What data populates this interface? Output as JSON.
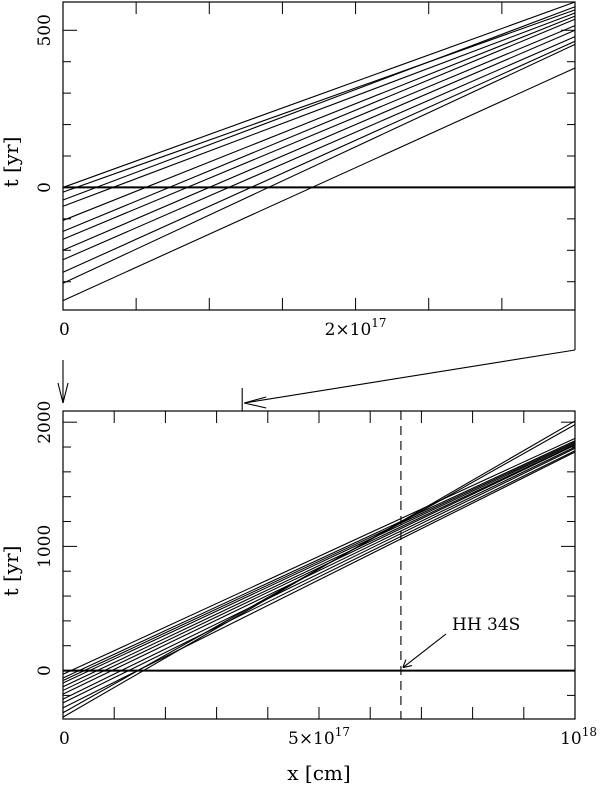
{
  "chart_data": [
    {
      "type": "line",
      "panel": "top",
      "ylabel": "t [yr]",
      "xlabel": "",
      "xlim": [
        0,
        3.5e+17
      ],
      "ylim": [
        -390,
        590
      ],
      "x_tick_labels": [
        {
          "x": 0,
          "text": "0"
        },
        {
          "x": 2e+17,
          "text": "2×10"
        },
        {
          "x_exp_for": "2×10",
          "text": "17"
        }
      ],
      "y_tick_labels": [
        {
          "y": 0,
          "text": "0"
        },
        {
          "y": 500,
          "text": "500"
        }
      ],
      "x_minor_ticks": [
        5e+16,
        1e+17,
        1.5e+17,
        2e+17,
        2.5e+17,
        3e+17
      ],
      "y_minor_ticks": [
        -300,
        -200,
        -100,
        0,
        100,
        200,
        300,
        400,
        500
      ],
      "reference_line_y": 0,
      "series": [
        {
          "x": [
            0,
            3.5e+17
          ],
          "y": [
            0,
            590
          ]
        },
        {
          "x": [
            0,
            3.5e+17
          ],
          "y": [
            -15,
            565
          ]
        },
        {
          "x": [
            0,
            3.5e+17
          ],
          "y": [
            -40,
            575
          ]
        },
        {
          "x": [
            0,
            3.5e+17
          ],
          "y": [
            -60,
            555
          ]
        },
        {
          "x": [
            0,
            3.5e+17
          ],
          "y": [
            -105,
            545
          ]
        },
        {
          "x": [
            0,
            3.5e+17
          ],
          "y": [
            -140,
            535
          ]
        },
        {
          "x": [
            0,
            3.5e+17
          ],
          "y": [
            -165,
            515
          ]
        },
        {
          "x": [
            0,
            3.5e+17
          ],
          "y": [
            -200,
            500
          ]
        },
        {
          "x": [
            0,
            3.5e+17
          ],
          "y": [
            -230,
            480
          ]
        },
        {
          "x": [
            0,
            3.5e+17
          ],
          "y": [
            -270,
            465
          ]
        },
        {
          "x": [
            0,
            3.5e+17
          ],
          "y": [
            -305,
            455
          ]
        },
        {
          "x": [
            0,
            3.5e+17
          ],
          "y": [
            -360,
            380
          ]
        }
      ]
    },
    {
      "type": "line",
      "panel": "bottom",
      "ylabel": "t [yr]",
      "xlabel": "x [cm]",
      "xlim": [
        0,
        1e+18
      ],
      "ylim": [
        -390,
        2090
      ],
      "x_tick_labels": [
        {
          "x": 0,
          "text": "0"
        },
        {
          "x": 5e+17,
          "text": "5×10"
        },
        {
          "x_exp_for": "5×10",
          "text": "17"
        },
        {
          "x": 1e+18,
          "text": "10"
        },
        {
          "x_exp_for": "10",
          "text": "18"
        }
      ],
      "y_tick_labels": [
        {
          "y": 0,
          "text": "0"
        },
        {
          "y": 1000,
          "text": "1000"
        },
        {
          "y": 2000,
          "text": "2000"
        }
      ],
      "x_minor_ticks": [
        1e+17,
        2e+17,
        3e+17,
        4e+17,
        5e+17,
        6e+17,
        7e+17,
        8e+17,
        9e+17
      ],
      "y_minor_ticks": [
        -200,
        0,
        200,
        400,
        600,
        800,
        1000,
        1200,
        1400,
        1600,
        1800,
        2000
      ],
      "reference_line_y": 0,
      "dashed_line_x": 6.6e+17,
      "annotation": {
        "text": "HH 34S",
        "points_to": {
          "x": 6.6e+17,
          "y": 0
        }
      },
      "series": [
        {
          "x": [
            0,
            1e+18
          ],
          "y": [
            -30,
            1870
          ]
        },
        {
          "x": [
            0,
            1e+18
          ],
          "y": [
            -60,
            1850
          ]
        },
        {
          "x": [
            0,
            1e+18
          ],
          "y": [
            -80,
            1840
          ]
        },
        {
          "x": [
            0,
            1e+18
          ],
          "y": [
            -100,
            1830
          ]
        },
        {
          "x": [
            0,
            1e+18
          ],
          "y": [
            -130,
            1820
          ]
        },
        {
          "x": [
            0,
            1e+18
          ],
          "y": [
            -160,
            1815
          ]
        },
        {
          "x": [
            0,
            1e+18
          ],
          "y": [
            -190,
            1800
          ]
        },
        {
          "x": [
            0,
            1e+18
          ],
          "y": [
            -230,
            1790
          ]
        },
        {
          "x": [
            0,
            1e+18
          ],
          "y": [
            -260,
            1770
          ]
        },
        {
          "x": [
            0,
            1e+18
          ],
          "y": [
            -300,
            1760
          ]
        },
        {
          "x": [
            0,
            1e+18
          ],
          "y": [
            -340,
            1980
          ]
        },
        {
          "x": [
            0,
            1e+18
          ],
          "y": [
            -375,
            2010
          ]
        }
      ]
    }
  ],
  "zoom_connector": {
    "top_axis_value": 3.5e+17,
    "bottom_axis_value": 3.5e+17,
    "origin_arrow_value": 0
  }
}
